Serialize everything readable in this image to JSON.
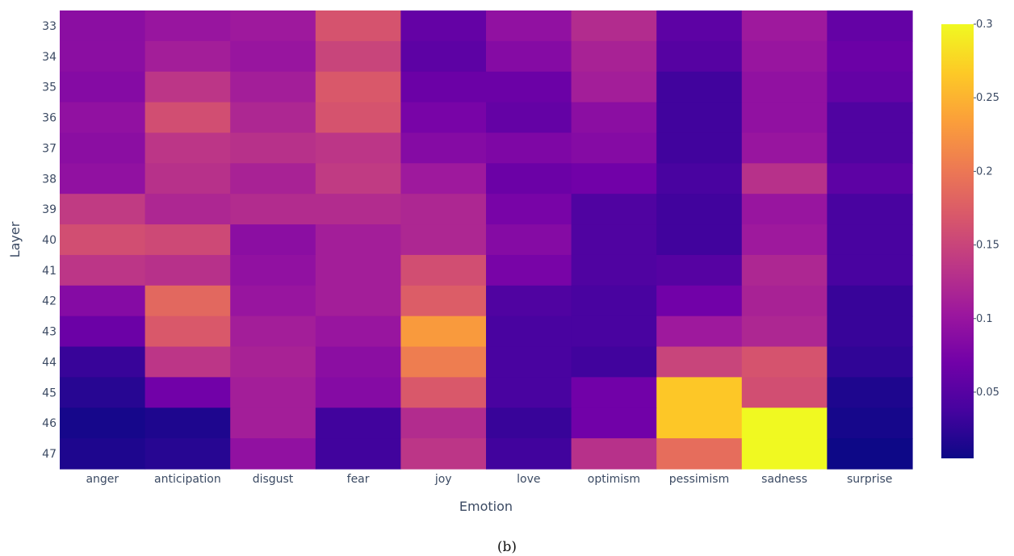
{
  "chart_data": {
    "type": "heatmap",
    "title": "",
    "xlabel": "Emotion",
    "ylabel": "Layer",
    "caption": "(b)",
    "x_categories": [
      "anger",
      "anticipation",
      "disgust",
      "fear",
      "joy",
      "love",
      "optimism",
      "pessimism",
      "sadness",
      "surprise"
    ],
    "y_categories": [
      "33",
      "34",
      "35",
      "36",
      "37",
      "38",
      "39",
      "40",
      "41",
      "42",
      "43",
      "44",
      "45",
      "46",
      "47"
    ],
    "values": [
      [
        0.09,
        0.1,
        0.105,
        0.165,
        0.06,
        0.095,
        0.125,
        0.055,
        0.105,
        0.06
      ],
      [
        0.09,
        0.11,
        0.1,
        0.15,
        0.055,
        0.085,
        0.115,
        0.05,
        0.1,
        0.065
      ],
      [
        0.085,
        0.135,
        0.11,
        0.17,
        0.065,
        0.065,
        0.11,
        0.035,
        0.095,
        0.06
      ],
      [
        0.095,
        0.16,
        0.12,
        0.165,
        0.075,
        0.06,
        0.09,
        0.035,
        0.095,
        0.045
      ],
      [
        0.09,
        0.135,
        0.13,
        0.135,
        0.085,
        0.08,
        0.085,
        0.035,
        0.1,
        0.045
      ],
      [
        0.095,
        0.13,
        0.115,
        0.14,
        0.105,
        0.065,
        0.07,
        0.04,
        0.13,
        0.055
      ],
      [
        0.14,
        0.12,
        0.125,
        0.125,
        0.12,
        0.075,
        0.045,
        0.035,
        0.1,
        0.04
      ],
      [
        0.16,
        0.155,
        0.09,
        0.11,
        0.12,
        0.085,
        0.045,
        0.035,
        0.105,
        0.04
      ],
      [
        0.135,
        0.13,
        0.095,
        0.11,
        0.16,
        0.075,
        0.045,
        0.05,
        0.12,
        0.04
      ],
      [
        0.085,
        0.185,
        0.1,
        0.11,
        0.175,
        0.045,
        0.04,
        0.07,
        0.115,
        0.03
      ],
      [
        0.065,
        0.17,
        0.11,
        0.1,
        0.23,
        0.04,
        0.04,
        0.105,
        0.12,
        0.03
      ],
      [
        0.03,
        0.135,
        0.115,
        0.09,
        0.205,
        0.04,
        0.035,
        0.15,
        0.165,
        0.025
      ],
      [
        0.02,
        0.07,
        0.11,
        0.085,
        0.17,
        0.04,
        0.07,
        0.265,
        0.16,
        0.015
      ],
      [
        0.01,
        0.015,
        0.11,
        0.035,
        0.125,
        0.03,
        0.07,
        0.265,
        0.3,
        0.01
      ],
      [
        0.015,
        0.02,
        0.095,
        0.035,
        0.135,
        0.035,
        0.13,
        0.19,
        0.3,
        0.005
      ]
    ],
    "zlim": [
      0.005,
      0.3
    ],
    "colorscale": "Plasma",
    "colorbar_ticks": [
      {
        "value": 0.05,
        "label": "0.05"
      },
      {
        "value": 0.1,
        "label": "0.1"
      },
      {
        "value": 0.15,
        "label": "0.15"
      },
      {
        "value": 0.2,
        "label": "0.2"
      },
      {
        "value": 0.25,
        "label": "0.25"
      },
      {
        "value": 0.3,
        "label": "0.3"
      }
    ],
    "colorscale_stops": [
      "#0d0887",
      "#46039f",
      "#7201a8",
      "#9c179e",
      "#bd3786",
      "#d8576b",
      "#ed7953",
      "#fb9f3a",
      "#fdca26",
      "#f0f921"
    ]
  }
}
